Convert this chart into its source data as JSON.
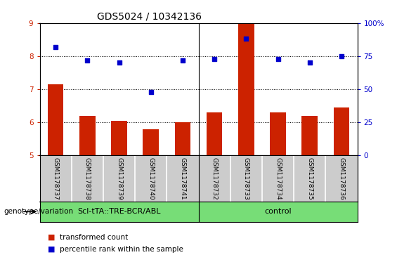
{
  "title": "GDS5024 / 10342136",
  "samples": [
    "GSM1178737",
    "GSM1178738",
    "GSM1178739",
    "GSM1178740",
    "GSM1178741",
    "GSM1178732",
    "GSM1178733",
    "GSM1178734",
    "GSM1178735",
    "GSM1178736"
  ],
  "bar_values": [
    7.15,
    6.2,
    6.05,
    5.8,
    6.0,
    6.3,
    9.0,
    6.3,
    6.2,
    6.45
  ],
  "dot_values": [
    82,
    72,
    70,
    48,
    72,
    73,
    88,
    73,
    70,
    75
  ],
  "bar_color": "#cc2200",
  "dot_color": "#0000cc",
  "ylim_left": [
    5,
    9
  ],
  "ylim_right": [
    0,
    100
  ],
  "yticks_left": [
    5,
    6,
    7,
    8,
    9
  ],
  "yticks_right": [
    0,
    25,
    50,
    75,
    100
  ],
  "ytick_labels_right": [
    "0",
    "25",
    "50",
    "75",
    "100%"
  ],
  "group1_label": "Scl-tTA::TRE-BCR/ABL",
  "group2_label": "control",
  "group_color": "#77dd77",
  "xlabel_left": "genotype/variation",
  "legend_bar_label": "transformed count",
  "legend_dot_label": "percentile rank within the sample",
  "sample_band_color": "#cccccc",
  "plot_bg_color": "#ffffff",
  "title_fontsize": 10,
  "tick_fontsize": 7.5,
  "sample_fontsize": 6.5,
  "group_fontsize": 8,
  "legend_fontsize": 7.5
}
